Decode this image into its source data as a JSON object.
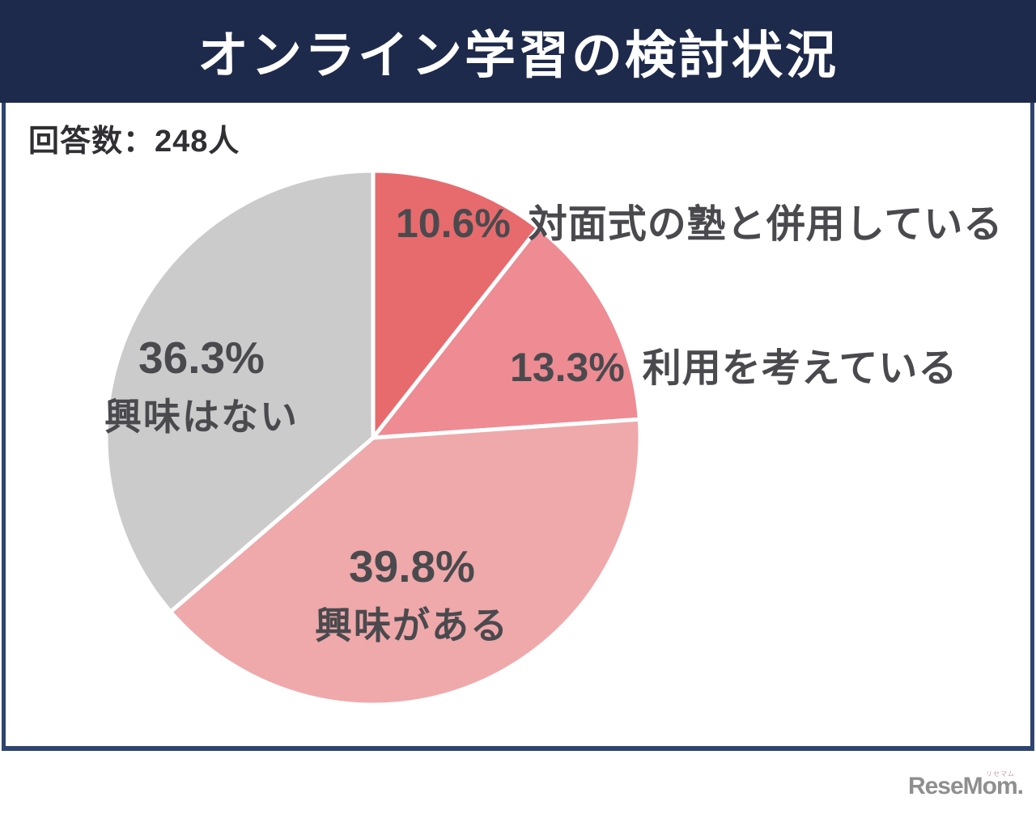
{
  "header": {
    "title": "オンライン学習の検討状況"
  },
  "panel": {
    "respondents": "回答数：248人"
  },
  "chart_data": {
    "type": "pie",
    "title": "オンライン学習の検討状況",
    "respondents_text": "回答数：248人",
    "total_respondents": 248,
    "unit": "%",
    "start_angle_deg": -90,
    "direction": "clockwise",
    "legend_position": "on-chart",
    "slices": [
      {
        "name": "対面式の塾と併用している",
        "value": 10.6,
        "pct_label": "10.6%",
        "color": "#e76b6d"
      },
      {
        "name": "利用を考えている",
        "value": 13.3,
        "pct_label": "13.3%",
        "color": "#ee8b93"
      },
      {
        "name": "興味がある",
        "value": 39.8,
        "pct_label": "39.8%",
        "color": "#efa9ab"
      },
      {
        "name": "興味はない",
        "value": 36.3,
        "pct_label": "36.3%",
        "color": "#cbcbcb"
      }
    ],
    "separator_color": "#ffffff"
  },
  "logo": {
    "text": "ReseMom.",
    "ruby": "リセマム"
  },
  "colors": {
    "band_navy": "#1e2a4b",
    "panel_border_navy": "#2e4471",
    "label_text": "#4a4a4e"
  }
}
